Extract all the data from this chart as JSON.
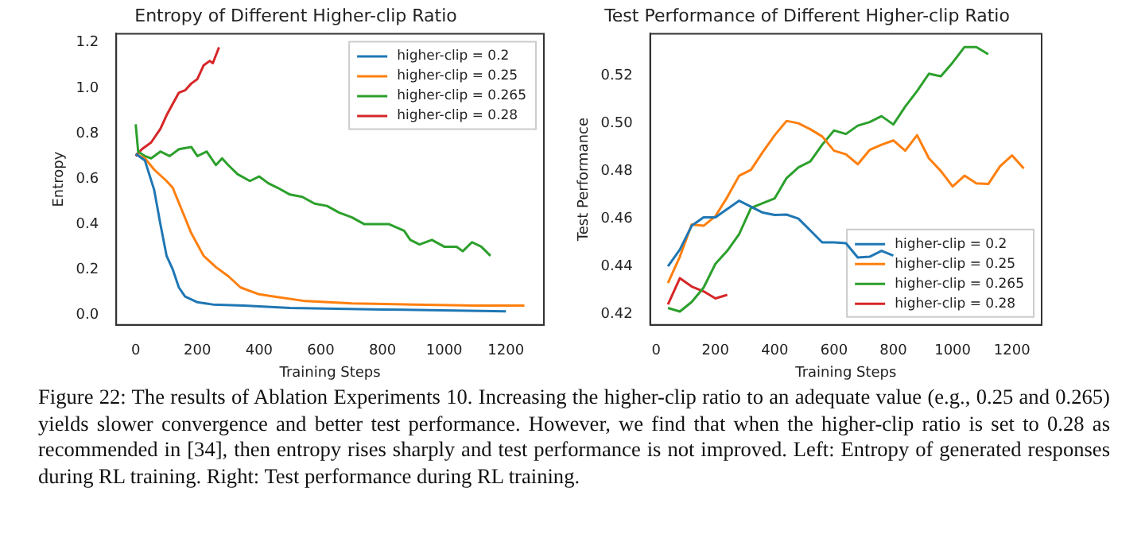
{
  "chart_data": [
    {
      "type": "line",
      "title": "Entropy of Different Higher-clip Ratio",
      "xlabel": "Training Steps",
      "ylabel": "Entropy",
      "legend": "top right",
      "grid": false,
      "marker": "none",
      "xlim": [
        -63,
        1323
      ],
      "xticks": [
        0,
        200,
        400,
        600,
        800,
        1000,
        1200
      ],
      "ylim": [
        -0.045,
        1.24
      ],
      "yticks": [
        {
          "value": 0,
          "label": "0.0"
        },
        0.2,
        0.4,
        0.6,
        0.8,
        {
          "value": 1,
          "label": "1.0"
        },
        1.2
      ],
      "series": [
        {
          "name": "higher-clip = 0.2",
          "color": "#1f77b4",
          "x": [
            0,
            30,
            60,
            80,
            100,
            120,
            140,
            160,
            200,
            250,
            350,
            500,
            800,
            1200
          ],
          "values": [
            0.71,
            0.68,
            0.55,
            0.4,
            0.26,
            0.2,
            0.12,
            0.08,
            0.055,
            0.045,
            0.04,
            0.03,
            0.023,
            0.015
          ]
        },
        {
          "name": "higher-clip = 0.25",
          "color": "#ff7f0e",
          "x": [
            0,
            30,
            60,
            100,
            120,
            150,
            180,
            220,
            260,
            300,
            340,
            400,
            450,
            550,
            700,
            900,
            1100,
            1260
          ],
          "values": [
            0.71,
            0.69,
            0.64,
            0.59,
            0.56,
            0.46,
            0.36,
            0.26,
            0.21,
            0.17,
            0.12,
            0.09,
            0.08,
            0.06,
            0.05,
            0.045,
            0.04,
            0.04
          ]
        },
        {
          "name": "higher-clip = 0.265",
          "color": "#2ca02c",
          "x": [
            0,
            8,
            30,
            50,
            80,
            110,
            140,
            180,
            200,
            230,
            260,
            280,
            300,
            330,
            370,
            400,
            430,
            460,
            500,
            540,
            580,
            620,
            660,
            700,
            740,
            780,
            820,
            870,
            890,
            920,
            960,
            1000,
            1040,
            1060,
            1090,
            1120,
            1150
          ],
          "values": [
            0.84,
            0.72,
            0.7,
            0.69,
            0.72,
            0.7,
            0.73,
            0.74,
            0.7,
            0.72,
            0.66,
            0.69,
            0.66,
            0.62,
            0.59,
            0.61,
            0.58,
            0.56,
            0.53,
            0.52,
            0.49,
            0.48,
            0.45,
            0.43,
            0.4,
            0.4,
            0.4,
            0.37,
            0.33,
            0.31,
            0.33,
            0.3,
            0.3,
            0.28,
            0.32,
            0.3,
            0.26
          ]
        },
        {
          "name": "higher-clip = 0.28",
          "color": "#d62728",
          "x": [
            0,
            20,
            50,
            80,
            100,
            120,
            140,
            160,
            180,
            200,
            220,
            240,
            250,
            270
          ],
          "values": [
            0.7,
            0.73,
            0.76,
            0.82,
            0.88,
            0.93,
            0.98,
            0.99,
            1.02,
            1.04,
            1.1,
            1.12,
            1.11,
            1.18
          ]
        }
      ],
      "annotations": [
        "Figure 22: The results of Ablation Experiments 10. Increasing the higher-clip ratio to an adequate value (e.g., 0.25 and 0.265) yields slower convergence and better test performance. However, we find that when the higher-clip ratio is set to 0.28 as recommended in [34], then entropy rises sharply and test performance is not improved. Left: Entropy of generated responses during RL training. Right: Test performance during RL training."
      ]
    },
    {
      "type": "line",
      "title": "Test Performance of Different Higher-clip Ratio",
      "xlabel": "Training Steps",
      "ylabel": "Test Performance",
      "legend": "bottom right",
      "grid": false,
      "marker": "none",
      "xlim": [
        -20,
        1300
      ],
      "xticks": [
        0,
        200,
        400,
        600,
        800,
        1000,
        1200
      ],
      "ylim": [
        0.4154,
        0.5376
      ],
      "yticks": [
        0.42,
        0.44,
        0.46,
        0.48,
        {
          "value": 0.5,
          "label": "0.50"
        },
        0.52
      ],
      "x": [
        40,
        80,
        120,
        160,
        200,
        240,
        280,
        320,
        360,
        400,
        440,
        480,
        520,
        560,
        600,
        640,
        680,
        720,
        760,
        800,
        840,
        880,
        920,
        960,
        1000,
        1040,
        1080,
        1120,
        1160,
        1200,
        1240
      ],
      "series": [
        {
          "name": "higher-clip = 0.2",
          "color": "#1f77b4",
          "values": [
            0.44,
            0.447,
            0.457,
            0.4605,
            0.4605,
            0.464,
            0.4675,
            0.465,
            0.4625,
            0.4615,
            0.4617,
            0.46,
            0.455,
            0.45,
            0.45,
            0.4497,
            0.4437,
            0.444,
            0.4465,
            0.4445,
            null,
            null,
            null,
            null,
            null,
            null,
            null,
            null,
            null,
            null,
            null
          ]
        },
        {
          "name": "higher-clip = 0.25",
          "color": "#ff7f0e",
          "values": [
            0.433,
            0.444,
            0.4575,
            0.457,
            0.461,
            0.469,
            0.478,
            0.4805,
            0.488,
            0.495,
            0.501,
            0.5,
            0.4975,
            0.4945,
            0.4885,
            0.487,
            0.4828,
            0.4888,
            0.491,
            0.4928,
            0.4885,
            0.495,
            0.4853,
            0.48,
            0.4735,
            0.478,
            0.4748,
            0.4745,
            0.482,
            0.4865,
            0.481
          ]
        },
        {
          "name": "higher-clip = 0.265",
          "color": "#2ca02c",
          "values": [
            0.4225,
            0.421,
            0.425,
            0.431,
            0.441,
            0.4465,
            0.4535,
            0.4645,
            0.4665,
            0.4685,
            0.477,
            0.4815,
            0.484,
            0.491,
            0.497,
            0.4955,
            0.499,
            0.5005,
            0.503,
            0.4995,
            0.507,
            0.5135,
            0.5208,
            0.5197,
            0.5255,
            0.532,
            0.532,
            0.529,
            null,
            null,
            null
          ]
        },
        {
          "name": "higher-clip = 0.28",
          "color": "#d62728",
          "values": [
            0.424,
            0.435,
            0.4315,
            0.4295,
            0.4265,
            0.428,
            null,
            null,
            null,
            null,
            null,
            null,
            null,
            null,
            null,
            null,
            null,
            null,
            null,
            null,
            null,
            null,
            null,
            null,
            null,
            null,
            null,
            null,
            null,
            null,
            null
          ]
        }
      ]
    }
  ]
}
